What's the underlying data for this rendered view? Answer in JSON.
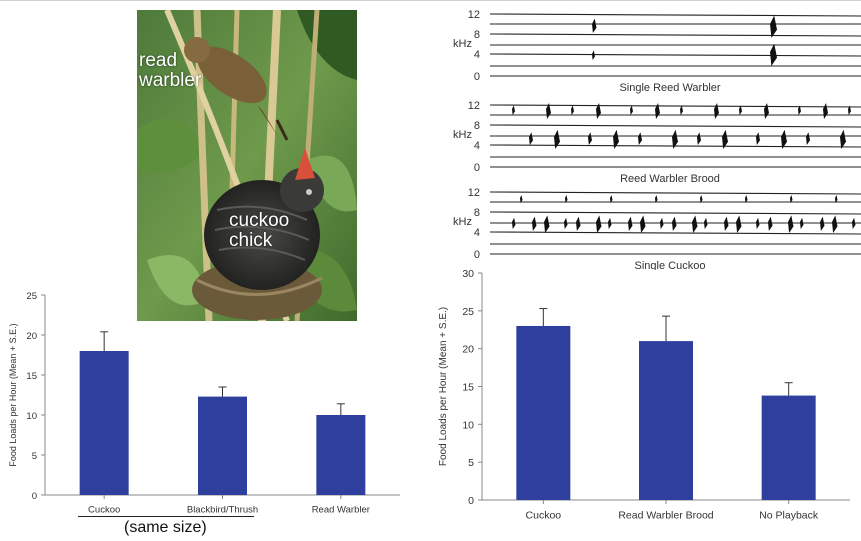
{
  "photo": {
    "label_warbler_1": "read",
    "label_warbler_2": "warbler",
    "label_cuckoo_1": "cuckoo",
    "label_cuckoo_2": "chick"
  },
  "spectrograms": [
    {
      "caption": "Single Reed Warbler",
      "yunit": "kHz",
      "ticks": [
        "12",
        "8",
        "4",
        "0"
      ]
    },
    {
      "caption": "Reed Warbler Brood",
      "yunit": "kHz",
      "ticks": [
        "12",
        "8",
        "4",
        "0"
      ]
    },
    {
      "caption": "Single Cuckoo",
      "yunit": "kHz",
      "ticks": [
        "12",
        "8",
        "4",
        "0"
      ]
    }
  ],
  "same_size_note": "(same size)",
  "chart_data": [
    {
      "type": "bar",
      "title": "",
      "xlabel": "",
      "ylabel": "Food Loads per Hour (Mean + S.E.)",
      "categories": [
        "Cuckoo",
        "Blackbird/Thrush",
        "Read Warbler"
      ],
      "values": [
        18,
        12.3,
        10
      ],
      "errors": [
        2.4,
        1.2,
        1.4
      ],
      "ylim": [
        0,
        25
      ],
      "yticks": [
        0,
        5,
        10,
        15,
        20,
        25
      ],
      "bar_color": "#2e3f9e"
    },
    {
      "type": "bar",
      "title": "",
      "xlabel": "",
      "ylabel": "Food Loads per Hour (Mean + S.E.)",
      "categories": [
        "Cuckoo",
        "Read Warbler Brood",
        "No Playback"
      ],
      "values": [
        23,
        21,
        13.8
      ],
      "errors": [
        2.3,
        3.3,
        1.7
      ],
      "ylim": [
        0,
        30
      ],
      "yticks": [
        0,
        5,
        10,
        15,
        20,
        25,
        30
      ],
      "bar_color": "#2e3f9e"
    }
  ]
}
